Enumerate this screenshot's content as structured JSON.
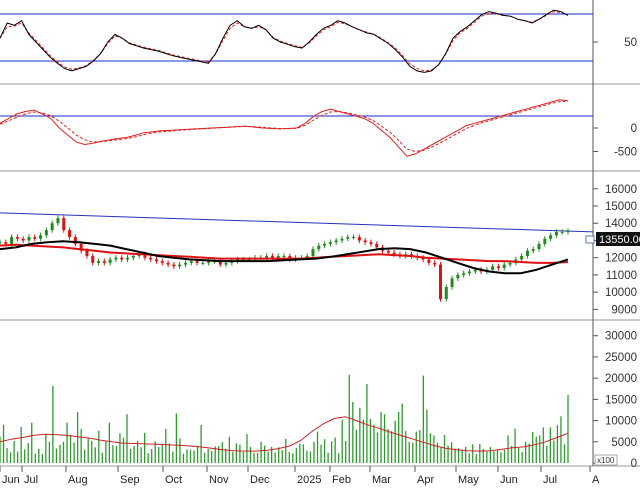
{
  "chart_data": {
    "type": "stock-chart",
    "x_labels": [
      "Jun",
      "Jul",
      "Aug",
      "Sep",
      "Oct",
      "Nov",
      "Dec",
      "2025",
      "Feb",
      "Mar",
      "Apr",
      "May",
      "Jun",
      "Jul",
      "A"
    ],
    "current_price": 13550,
    "current_price_label": "13550.00",
    "volume_unit_label": "x100",
    "panels": {
      "rsi": {
        "yticks": [
          50
        ],
        "ylim": [
          0,
          100
        ],
        "guide_levels": [
          20,
          80
        ],
        "series": {
          "indicator": [
            55,
            75,
            72,
            78,
            60,
            50,
            40,
            30,
            22,
            15,
            12,
            15,
            18,
            25,
            35,
            50,
            60,
            55,
            48,
            45,
            42,
            40,
            38,
            35,
            32,
            30,
            28,
            26,
            24,
            22,
            35,
            55,
            72,
            78,
            70,
            68,
            72,
            66,
            55,
            50,
            47,
            44,
            42,
            50,
            60,
            68,
            72,
            78,
            75,
            70,
            66,
            62,
            60,
            54,
            48,
            40,
            30,
            18,
            12,
            10,
            12,
            20,
            35,
            55,
            64,
            70,
            78,
            86,
            90,
            88,
            85,
            84,
            80,
            78,
            75,
            80,
            86,
            92,
            90,
            85
          ],
          "signal": [
            55,
            70,
            71,
            75,
            62,
            52,
            42,
            32,
            24,
            17,
            14,
            16,
            19,
            26,
            35,
            48,
            58,
            55,
            49,
            46,
            43,
            41,
            39,
            36,
            33,
            31,
            29,
            27,
            25,
            24,
            34,
            52,
            68,
            75,
            70,
            68,
            70,
            66,
            56,
            51,
            48,
            45,
            43,
            49,
            58,
            66,
            70,
            76,
            74,
            70,
            66,
            63,
            60,
            55,
            49,
            42,
            32,
            21,
            15,
            12,
            13,
            20,
            34,
            52,
            62,
            68,
            76,
            84,
            88,
            87,
            85,
            84,
            80,
            78,
            76,
            80,
            85,
            90,
            89,
            86
          ]
        }
      },
      "macd": {
        "yticks": [
          0,
          -500
        ],
        "ylim": [
          -850,
          850
        ],
        "series": {
          "macd": [
            100,
            200,
            300,
            350,
            380,
            300,
            200,
            0,
            -150,
            -300,
            -350,
            -320,
            -280,
            -250,
            -220,
            -200,
            -150,
            -100,
            -80,
            -60,
            -50,
            -40,
            -30,
            -20,
            -10,
            0,
            10,
            20,
            30,
            40,
            20,
            0,
            -10,
            -20,
            -10,
            0,
            100,
            250,
            350,
            400,
            350,
            300,
            250,
            200,
            100,
            -50,
            -200,
            -400,
            -600,
            -550,
            -450,
            -350,
            -250,
            -150,
            -50,
            50,
            100,
            150,
            200,
            250,
            300,
            350,
            400,
            450,
            500,
            550,
            600,
            580
          ],
          "signal": [
            80,
            150,
            230,
            300,
            340,
            320,
            260,
            140,
            0,
            -150,
            -250,
            -300,
            -290,
            -270,
            -245,
            -225,
            -190,
            -140,
            -105,
            -80,
            -65,
            -50,
            -38,
            -27,
            -16,
            -5,
            5,
            15,
            25,
            35,
            28,
            15,
            0,
            -10,
            -10,
            -5,
            60,
            170,
            270,
            340,
            350,
            320,
            280,
            235,
            160,
            40,
            -90,
            -260,
            -450,
            -500,
            -470,
            -400,
            -310,
            -210,
            -110,
            -10,
            60,
            120,
            170,
            220,
            270,
            320,
            370,
            420,
            470,
            520,
            560,
            570
          ]
        }
      },
      "price": {
        "yticks": [
          9000,
          10000,
          11000,
          12000,
          13000,
          14000,
          15000,
          16000
        ],
        "ylim": [
          8500,
          16800
        ],
        "trendline": [
          14600,
          13500
        ],
        "close": [
          12900,
          12800,
          13200,
          13100,
          13000,
          13200,
          13100,
          13300,
          13600,
          14000,
          14300,
          13600,
          13200,
          12800,
          12400,
          12100,
          11700,
          11800,
          11700,
          11900,
          12000,
          11900,
          12000,
          12100,
          12200,
          12000,
          11900,
          11800,
          11700,
          11600,
          11500,
          11600,
          11700,
          11800,
          11700,
          11700,
          11800,
          11800,
          11600,
          11700,
          11800,
          11900,
          11900,
          11900,
          12000,
          12000,
          12100,
          12000,
          12100,
          12100,
          11900,
          12000,
          12000,
          12100,
          12500,
          12700,
          12800,
          12900,
          13000,
          13100,
          13200,
          13200,
          13000,
          12900,
          12800,
          12600,
          12400,
          12300,
          12200,
          12100,
          12200,
          12100,
          12000,
          11900,
          11700,
          11600,
          9600,
          10300,
          10800,
          11000,
          11100,
          11200,
          11300,
          11200,
          11300,
          11500,
          11400,
          11600,
          11700,
          11900,
          12100,
          12400,
          12500,
          12800,
          13100,
          13300,
          13500,
          13500,
          13550
        ],
        "ma_short": [
          12500,
          12600,
          12800,
          12900,
          12950,
          12900,
          12800,
          12700,
          12500,
          12300,
          12100,
          12000,
          11900,
          11850,
          11800,
          11800,
          11800,
          11800,
          11850,
          11900,
          11950,
          12050,
          12200,
          12350,
          12500,
          12550,
          12500,
          12300,
          12000,
          11700,
          11400,
          11200,
          11100,
          11100,
          11300,
          11600,
          11900
        ],
        "ma_long": [
          12700,
          12750,
          12700,
          12650,
          12600,
          12500,
          12400,
          12300,
          12250,
          12200,
          12150,
          12100,
          12050,
          12000,
          11950,
          11950,
          11950,
          11950,
          11950,
          11950,
          12000,
          12050,
          12100,
          12150,
          12200,
          12150,
          12100,
          12000,
          11950,
          11900,
          11850,
          11800,
          11800,
          11750,
          11700,
          11700,
          11750
        ]
      },
      "volume": {
        "yticks": [
          0,
          5000,
          10000,
          15000,
          20000,
          25000,
          30000
        ],
        "ylim": [
          0,
          33000
        ],
        "values": [
          6200,
          9000,
          3500,
          2500,
          5200,
          2700,
          8500,
          3200,
          4700,
          9500,
          2200,
          3300,
          2100,
          6600,
          5000,
          18200,
          3400,
          4300,
          5000,
          9500,
          6600,
          4800,
          12000,
          8000,
          3100,
          6000,
          5200,
          3700,
          7600,
          2400,
          5100,
          9500,
          4200,
          4000,
          7000,
          6000,
          11500,
          3300,
          4000,
          5200,
          3700,
          7100,
          2300,
          3300,
          5100,
          3800,
          4500,
          8000,
          4600,
          2700,
          11700,
          5800,
          2200,
          3200,
          3100,
          2900,
          4000,
          9000,
          2400,
          3300,
          2800,
          3900,
          4000,
          4900,
          3400,
          6200,
          2600,
          4600,
          4300,
          2600,
          6800,
          3800,
          2400,
          2400,
          5000,
          4100,
          2700,
          3800,
          2500,
          3700,
          3000,
          5700,
          2600,
          2300,
          3500,
          4500,
          4400,
          2900,
          2700,
          5000,
          7400,
          4300,
          5600,
          2400,
          5100,
          6000,
          2300,
          10200,
          5200,
          20800,
          14400,
          7800,
          13000,
          10200,
          18600,
          10400,
          9000,
          7200,
          12000,
          11500,
          8000,
          7500,
          10000,
          12000,
          14000,
          7500,
          5000,
          4800,
          7400,
          7800,
          20600,
          12600,
          7000,
          6500,
          4800,
          3600,
          6600,
          4100,
          4900,
          3400,
          3500,
          3200,
          3800,
          2300,
          4400,
          2100,
          4500,
          3300,
          2700,
          3800,
          2800,
          3000,
          2500,
          3100,
          6500,
          4000,
          8100,
          3600,
          2600,
          5000,
          4600,
          7300,
          6200,
          6500,
          8400,
          4100,
          8400,
          5300,
          8900,
          11000,
          4400,
          16000
        ],
        "ma": [
          5000,
          5600,
          6000,
          6500,
          6800,
          6700,
          6500,
          6200,
          5900,
          5400,
          5000,
          4700,
          4600,
          4500,
          4400,
          4300,
          4200,
          4000,
          3800,
          3500,
          3100,
          2900,
          2800,
          2800,
          3000,
          3400,
          4000,
          5300,
          7400,
          9200,
          10500,
          10900,
          10000,
          9000,
          8200,
          7300,
          6500,
          5700,
          4900,
          4100,
          3500,
          3100,
          2900,
          2800,
          2900,
          3200,
          3600,
          3800,
          4300,
          5000,
          6000,
          7000
        ]
      }
    }
  }
}
